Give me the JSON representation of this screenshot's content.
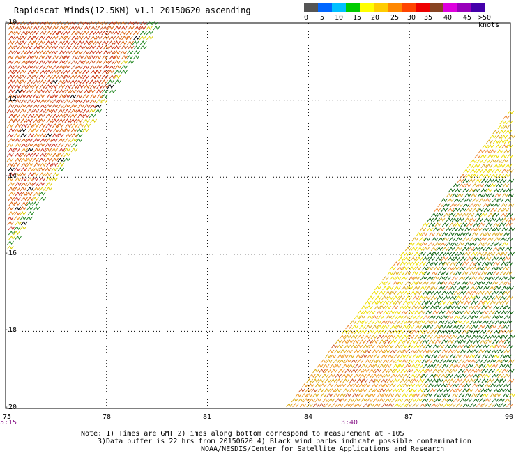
{
  "header": {
    "title": "Rapidscat Winds(12.5KM) v1.1 20150620 ascending"
  },
  "scale": {
    "colors": [
      "#555555",
      "#0066ff",
      "#00c0ff",
      "#00cc00",
      "#ffff00",
      "#ffcc00",
      "#ff8800",
      "#ff4400",
      "#ee0000",
      "#884422",
      "#dd00dd",
      "#9900bb",
      "#4400aa"
    ],
    "labels": [
      "0",
      "5",
      "10",
      "15",
      "20",
      "25",
      "30",
      "35",
      "40",
      "45",
      ">50 knots"
    ]
  },
  "map": {
    "y_ticks": [
      "-10",
      "-12",
      "-14",
      "-16",
      "-18",
      "-20"
    ],
    "x_ticks": [
      "75",
      "78",
      "81",
      "84",
      "87",
      "90"
    ],
    "time_labels": [
      "5:15",
      "3:40"
    ],
    "lat_range": [
      -20,
      -10
    ],
    "lon_range": [
      75,
      90
    ],
    "gridlines": true
  },
  "footer": {
    "line1": "Note: 1) Times are GMT 2)Times along bottom correspond to measurement at -10S",
    "line2": "3)Data buffer is 22 hrs from 20150620 4) Black wind barbs indicate possible contamination",
    "line3": "NOAA/NESDIS/Center for Satellite Applications and Research"
  }
}
